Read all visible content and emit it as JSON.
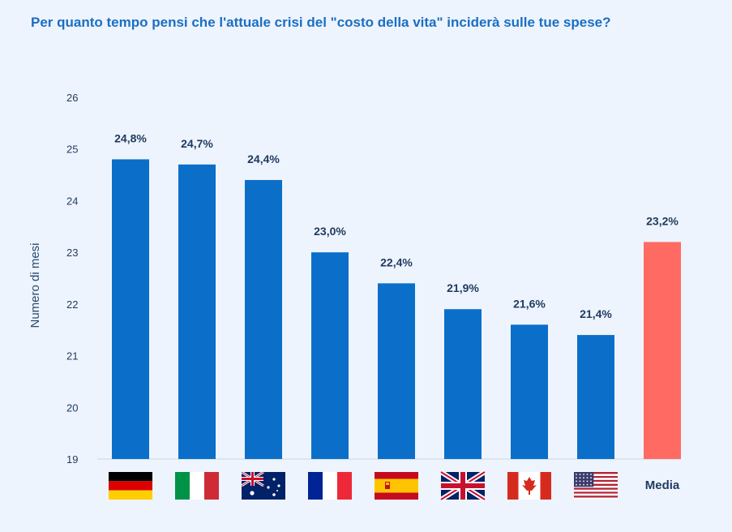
{
  "title": "Per quanto tempo pensi che l'attuale crisi del \"costo della vita\" inciderà sulle tue spese?",
  "chart_data": {
    "type": "bar",
    "title": "Per quanto tempo pensi che l'attuale crisi del \"costo della vita\" inciderà sulle tue spese?",
    "ylabel": "Numero di mesi",
    "xlabel": "",
    "ylim": [
      19,
      26
    ],
    "yticks": [
      "19",
      "20",
      "21",
      "22",
      "23",
      "24",
      "25",
      "26"
    ],
    "grid": false,
    "categories": [
      "Germany-flag",
      "Italy-flag",
      "Australia-flag",
      "France-flag",
      "Spain-flag",
      "UK-flag",
      "Canada-flag",
      "USA-flag",
      "Media"
    ],
    "category_text": [
      "",
      "",
      "",
      "",
      "",
      "",
      "",
      "",
      "Media"
    ],
    "values": [
      24.8,
      24.7,
      24.4,
      23.0,
      22.4,
      21.9,
      21.6,
      21.4,
      23.2
    ],
    "data_labels": [
      "24,8%",
      "24,7%",
      "24,4%",
      "23,0%",
      "22,4%",
      "21,9%",
      "21,6%",
      "21,4%",
      "23,2%"
    ],
    "colors": [
      "#0b6fca",
      "#0b6fca",
      "#0b6fca",
      "#0b6fca",
      "#0b6fca",
      "#0b6fca",
      "#0b6fca",
      "#0b6fca",
      "#ff6b63"
    ]
  }
}
